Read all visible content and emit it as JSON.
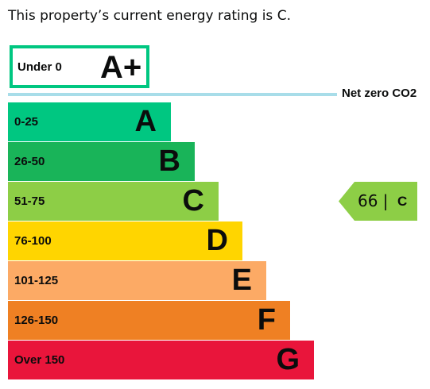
{
  "intro_text": "This property’s current energy rating is C.",
  "top_band": {
    "range": "Under 0",
    "letter": "A+",
    "color": "#00c781"
  },
  "net_zero": {
    "label": "Net zero CO2",
    "color": "#a8dde9"
  },
  "bands": [
    {
      "range": "0-25",
      "letter": "A",
      "color": "#00c781"
    },
    {
      "range": "26-50",
      "letter": "B",
      "color": "#19b459"
    },
    {
      "range": "51-75",
      "letter": "C",
      "color": "#8dce46"
    },
    {
      "range": "76-100",
      "letter": "D",
      "color": "#ffd500"
    },
    {
      "range": "101-125",
      "letter": "E",
      "color": "#fcaa65"
    },
    {
      "range": "126-150",
      "letter": "F",
      "color": "#ef8023"
    },
    {
      "range": "Over 150",
      "letter": "G",
      "color": "#e9153b"
    }
  ],
  "current": {
    "score": "66 |",
    "letter": "C",
    "color": "#8dce46"
  }
}
